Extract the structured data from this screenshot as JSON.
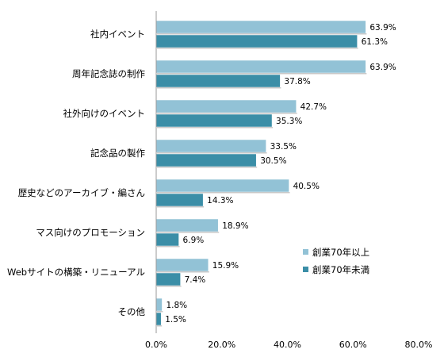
{
  "chart_data": {
    "type": "bar",
    "orientation": "horizontal",
    "categories": [
      "社内イベント",
      "周年記念誌の制作",
      "社外向けのイベント",
      "記念品の製作",
      "歴史などのアーカイブ・編さん",
      "マス向けのプロモーション",
      "Webサイトの構築・リニューアル",
      "その他"
    ],
    "series": [
      {
        "name": "創業70年以上",
        "values": [
          63.9,
          63.9,
          42.7,
          33.5,
          40.5,
          18.9,
          15.9,
          1.8
        ],
        "color": "#92c2d6"
      },
      {
        "name": "創業70年未満",
        "values": [
          61.3,
          37.8,
          35.3,
          30.5,
          14.3,
          6.9,
          7.4,
          1.5
        ],
        "color": "#3b8ea7"
      }
    ],
    "xlim": [
      0,
      80
    ],
    "xticks": [
      0,
      20,
      40,
      60,
      80
    ],
    "tick_format": "{v}.0%",
    "value_suffix": "%",
    "grid": false,
    "legend_position": "bottom-right",
    "title": "",
    "xlabel": "",
    "ylabel": ""
  }
}
